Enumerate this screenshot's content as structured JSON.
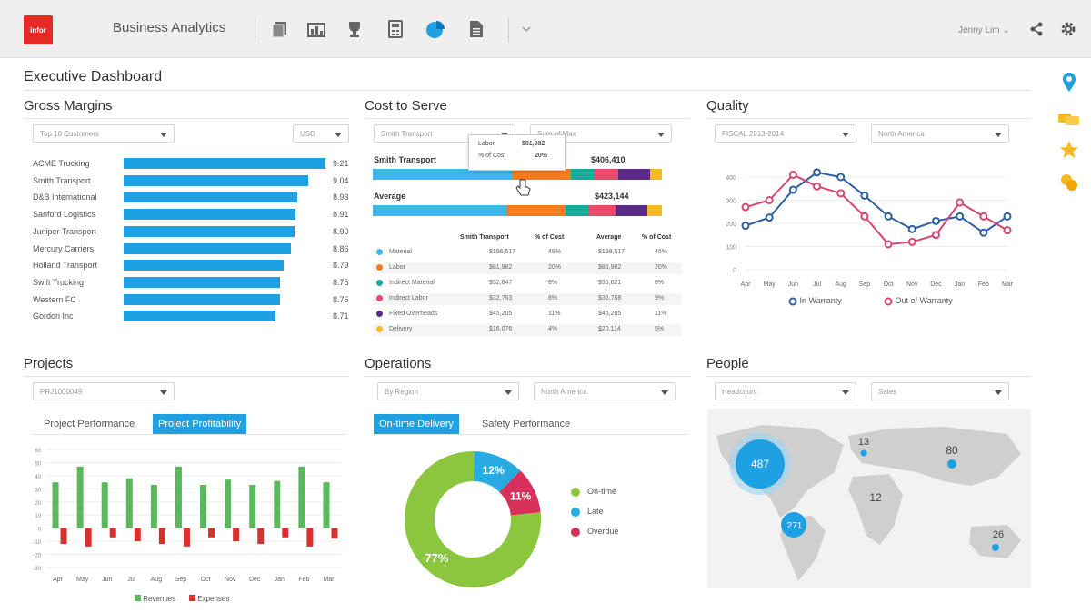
{
  "topbar": {
    "logo_text": "infor",
    "app_title": "Business Analytics",
    "user": "Jenny Lim ⌄"
  },
  "dashboard": {
    "title": "Executive Dashboard"
  },
  "gross_margins": {
    "title": "Gross Margins",
    "filter": "Top 10 Customers",
    "currency": "USD",
    "rows": [
      {
        "name": "ACME Trucking",
        "value": "9.21"
      },
      {
        "name": "Smith Transport",
        "value": "9.04"
      },
      {
        "name": "D&B International",
        "value": "8.93"
      },
      {
        "name": "Sanford Logistics",
        "value": "8.91"
      },
      {
        "name": "Juniper Transport",
        "value": "8.90"
      },
      {
        "name": "Mercury Carriers",
        "value": "8.86"
      },
      {
        "name": "Holland Transport",
        "value": "8.79"
      },
      {
        "name": "Swift Trucking",
        "value": "8.75"
      },
      {
        "name": "Western FC",
        "value": "8.75"
      },
      {
        "name": "Gordon Inc",
        "value": "8.71"
      }
    ]
  },
  "cost_to_serve": {
    "title": "Cost to Serve",
    "filter1": "Smith Transport",
    "filter2": "Sum of Max",
    "bar1_label": "Smith Transport",
    "bar1_value": "$406,410",
    "bar2_label": "Average",
    "bar2_value": "$423,144",
    "tooltip": {
      "k1": "Labor",
      "v1": "$81,982",
      "k2": "% of Cost",
      "v2": "20%"
    },
    "headers": [
      "Smith Transport",
      "% of Cost",
      "Average",
      "% of Cost"
    ],
    "rows": [
      {
        "name": "Material",
        "c1": "$196,517",
        "c2": "48%",
        "c3": "$199,517",
        "c4": "46%",
        "color": "#3fb7e8"
      },
      {
        "name": "Labor",
        "c1": "$81,982",
        "c2": "20%",
        "c3": "$85,982",
        "c4": "20%",
        "color": "#f47c1e"
      },
      {
        "name": "Indirect Material",
        "c1": "$32,847",
        "c2": "8%",
        "c3": "$35,621",
        "c4": "8%",
        "color": "#1aaa9b"
      },
      {
        "name": "Indirect Labor",
        "c1": "$32,763",
        "c2": "8%",
        "c3": "$36,768",
        "c4": "9%",
        "color": "#e84a6b"
      },
      {
        "name": "Fixed Overheads",
        "c1": "$45,205",
        "c2": "11%",
        "c3": "$46,205",
        "c4": "11%",
        "color": "#5b2a86"
      },
      {
        "name": "Delivery",
        "c1": "$16,076",
        "c2": "4%",
        "c3": "$20,114",
        "c4": "5%",
        "color": "#f5b921"
      }
    ],
    "bar_colors": [
      "#3fb7e8",
      "#f47c1e",
      "#1aaa9b",
      "#e84a6b",
      "#5b2a86",
      "#f5b921"
    ],
    "bar1_shares": [
      48,
      20,
      8,
      8,
      11,
      4
    ],
    "bar2_shares": [
      46,
      20,
      8,
      9,
      11,
      5
    ]
  },
  "quality": {
    "title": "Quality",
    "filter1": "FISCAL 2013-2014",
    "filter2": "North America",
    "legend1": "In Warranty",
    "legend2": "Out of Warranty",
    "color1": "#2e5fa3",
    "color2": "#d6466f"
  },
  "projects": {
    "title": "Projects",
    "filter": "PRJ1000049",
    "tab1": "Project Performance",
    "tab2": "Project Profitability",
    "legend1": "Revenues",
    "legend2": "Expenses"
  },
  "operations": {
    "title": "Operations",
    "filter1": "By Region",
    "filter2": "North America",
    "tab1": "On-time Delivery",
    "tab2": "Safety Performance",
    "legend": [
      "On-time",
      "Late",
      "Overdue"
    ],
    "colors": [
      "#8cc63f",
      "#29abe2",
      "#d6305b"
    ]
  },
  "people": {
    "title": "People",
    "filter1": "Headcount",
    "filter2": "Sales",
    "bubbles": [
      "487",
      "13",
      "80",
      "12",
      "271",
      "26"
    ]
  },
  "chart_data": [
    {
      "type": "bar",
      "categories": [
        "ACME Trucking",
        "Smith Transport",
        "D&B International",
        "Sanford Logistics",
        "Juniper Transport",
        "Mercury Carriers",
        "Holland Transport",
        "Swift Trucking",
        "Western FC",
        "Gordon Inc"
      ],
      "values": [
        9.21,
        9.04,
        8.93,
        8.91,
        8.9,
        8.86,
        8.79,
        8.75,
        8.75,
        8.71
      ],
      "title": "Gross Margins"
    },
    {
      "type": "line",
      "title": "Quality",
      "x": [
        "Apr",
        "May",
        "Jun",
        "Jul",
        "Aug",
        "Sep",
        "Oct",
        "Nov",
        "Dec",
        "Jan",
        "Feb",
        "Mar"
      ],
      "yticks": [
        "400",
        "300",
        "200",
        "100",
        "0"
      ],
      "ylim": [
        0,
        400
      ],
      "series": [
        {
          "name": "In Warranty",
          "values": [
            190,
            225,
            345,
            420,
            400,
            320,
            230,
            175,
            210,
            230,
            160,
            230
          ]
        },
        {
          "name": "Out of Warranty",
          "values": [
            270,
            300,
            410,
            360,
            330,
            230,
            110,
            120,
            150,
            290,
            230,
            170
          ]
        }
      ]
    },
    {
      "type": "bar",
      "title": "Projects",
      "categories": [
        "Apr",
        "May",
        "Jun",
        "Jul",
        "Aug",
        "Sep",
        "Oct",
        "Nov",
        "Dec",
        "Jan",
        "Feb",
        "Mar"
      ],
      "yticks": [
        "60",
        "50",
        "40",
        "30",
        "20",
        "10",
        "0",
        "-10",
        "-20",
        "-30"
      ],
      "ylim": [
        -30,
        60
      ],
      "series": [
        {
          "name": "Revenues",
          "values": [
            35,
            47,
            35,
            38,
            33,
            47,
            33,
            37,
            33,
            36,
            47,
            35
          ]
        },
        {
          "name": "Expenses",
          "values": [
            -12,
            -14,
            -7,
            -10,
            -12,
            -14,
            -7,
            -10,
            -12,
            -7,
            -14,
            -8
          ]
        }
      ]
    },
    {
      "type": "pie",
      "title": "On-time Delivery",
      "labels": [
        "On-time",
        "Late",
        "Overdue"
      ],
      "values": [
        77,
        12,
        11
      ]
    }
  ]
}
